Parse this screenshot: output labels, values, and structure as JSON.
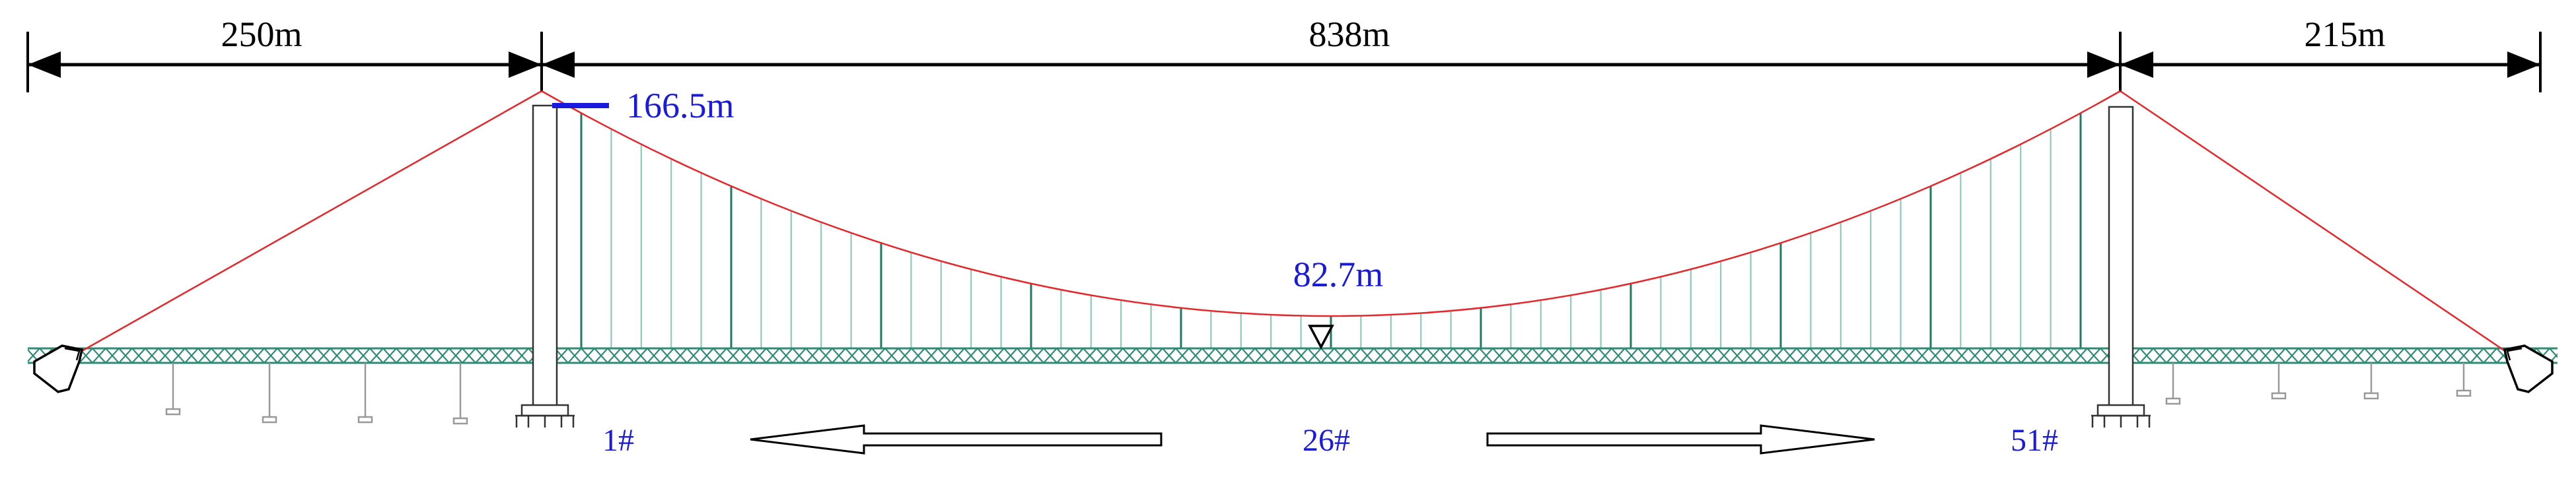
{
  "dimensions": {
    "left_span": "250m",
    "main_span": "838m",
    "right_span": "215m"
  },
  "elevations": {
    "tower_top": "166.5m",
    "midspan_cable": "82.7m"
  },
  "hanger_labels": {
    "first": "1#",
    "middle": "26#",
    "last": "51#"
  },
  "colors": {
    "cable": "#e8262a",
    "hanger": "#2e8b74",
    "deck": "#2e8b74",
    "annotation": "#1a1adf",
    "outline": "#000000"
  },
  "icons": {
    "arrow_left": "hollow-arrow-left-icon",
    "arrow_right": "hollow-arrow-right-icon",
    "level_marker": "triangle-down-icon"
  }
}
